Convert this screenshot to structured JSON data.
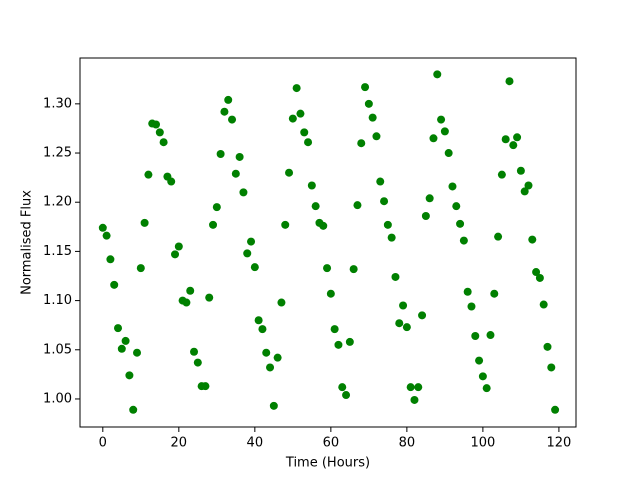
{
  "chart_data": {
    "type": "scatter",
    "x_label": "Time (Hours)",
    "y_label": "Normalised Flux",
    "color": "#008000",
    "x": [
      0,
      1,
      2,
      3,
      4,
      5,
      6,
      7,
      8,
      9,
      10,
      11,
      12,
      13,
      14,
      15,
      16,
      17,
      18,
      19,
      20,
      21,
      22,
      23,
      24,
      25,
      26,
      27,
      28,
      29,
      30,
      31,
      32,
      33,
      34,
      35,
      36,
      37,
      38,
      39,
      40,
      41,
      42,
      43,
      44,
      45,
      46,
      47,
      48,
      49,
      50,
      51,
      52,
      53,
      54,
      55,
      56,
      57,
      58,
      59,
      60,
      61,
      62,
      63,
      64,
      65,
      66,
      67,
      68,
      69,
      70,
      71,
      72,
      73,
      74,
      75,
      76,
      77,
      78,
      79,
      80,
      81,
      82,
      83,
      84,
      85,
      86,
      87,
      88,
      89,
      90,
      91,
      92,
      93,
      94,
      95,
      96,
      97,
      98,
      99,
      100,
      101,
      102,
      103,
      104,
      105,
      106,
      107,
      108,
      109,
      110,
      111,
      112,
      113,
      114,
      115,
      116,
      117,
      118,
      119
    ],
    "values": [
      1.174,
      1.166,
      1.142,
      1.116,
      1.072,
      1.051,
      1.059,
      1.024,
      0.989,
      1.047,
      1.133,
      1.179,
      1.228,
      1.28,
      1.279,
      1.271,
      1.261,
      1.226,
      1.221,
      1.147,
      1.155,
      1.1,
      1.098,
      1.11,
      1.048,
      1.037,
      1.013,
      1.013,
      1.103,
      1.177,
      1.195,
      1.249,
      1.292,
      1.304,
      1.284,
      1.229,
      1.246,
      1.21,
      1.148,
      1.16,
      1.134,
      1.08,
      1.071,
      1.047,
      1.032,
      0.993,
      1.042,
      1.098,
      1.177,
      1.23,
      1.285,
      1.316,
      1.29,
      1.271,
      1.261,
      1.217,
      1.196,
      1.179,
      1.176,
      1.133,
      1.107,
      1.071,
      1.055,
      1.012,
      1.004,
      1.058,
      1.132,
      1.197,
      1.26,
      1.317,
      1.3,
      1.286,
      1.267,
      1.221,
      1.201,
      1.177,
      1.164,
      1.124,
      1.077,
      1.095,
      1.073,
      1.012,
      0.999,
      1.012,
      1.085,
      1.186,
      1.204,
      1.265,
      1.33,
      1.284,
      1.272,
      1.25,
      1.216,
      1.196,
      1.178,
      1.161,
      1.109,
      1.094,
      1.064,
      1.039,
      1.023,
      1.011,
      1.065,
      1.107,
      1.165,
      1.228,
      1.264,
      1.323,
      1.258,
      1.266,
      1.232,
      1.211,
      1.217,
      1.162,
      1.129,
      1.123,
      1.096,
      1.053,
      1.032,
      0.989
    ],
    "xlim": [
      -6,
      124.5
    ],
    "ylim": [
      0.9715,
      1.3466
    ],
    "xticks": [
      0,
      20,
      40,
      60,
      80,
      100,
      120
    ],
    "yticks": [
      {
        "value": 1,
        "label": "1.00"
      },
      1.05,
      {
        "value": 1.1,
        "label": "1.10"
      },
      1.15,
      {
        "value": 1.2,
        "label": "1.20"
      },
      1.25,
      {
        "value": 1.3,
        "label": "1.30"
      }
    ]
  }
}
